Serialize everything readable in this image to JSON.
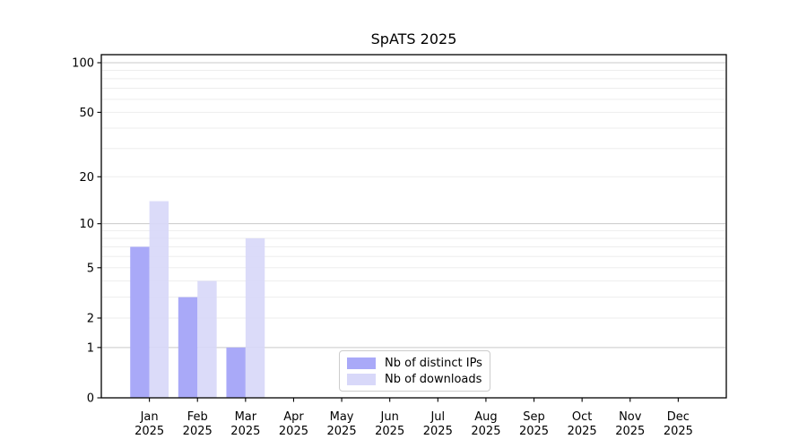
{
  "chart_data": {
    "type": "bar",
    "title": "SpATS 2025",
    "categories": [
      "Jan",
      "Feb",
      "Mar",
      "Apr",
      "May",
      "Jun",
      "Jul",
      "Aug",
      "Sep",
      "Oct",
      "Nov",
      "Dec"
    ],
    "category_year": "2025",
    "series": [
      {
        "name": "Nb of distinct IPs",
        "color": "#a9a9f8",
        "values": [
          7,
          3,
          1,
          0,
          0,
          0,
          0,
          0,
          0,
          0,
          0,
          0
        ]
      },
      {
        "name": "Nb of downloads",
        "color": "#d8d8f9",
        "values": [
          14,
          4,
          8,
          0,
          0,
          0,
          0,
          0,
          0,
          0,
          0,
          0
        ]
      }
    ],
    "y_axis": {
      "scale": "log1p",
      "range": [
        0,
        100
      ],
      "tick_labels": [
        0,
        1,
        2,
        5,
        10,
        20,
        50,
        100
      ],
      "major_gridlines": [
        1,
        10,
        100
      ],
      "minor_gridlines": [
        2,
        3,
        4,
        5,
        6,
        7,
        8,
        9,
        20,
        30,
        40,
        50,
        60,
        70,
        80,
        90
      ]
    },
    "legend": {
      "position": "lower center"
    },
    "colors": {
      "major_grid": "#c9c9c9",
      "minor_grid": "#ededed",
      "spine": "#000000",
      "tick_text": "#000000",
      "background": "#ffffff"
    }
  }
}
